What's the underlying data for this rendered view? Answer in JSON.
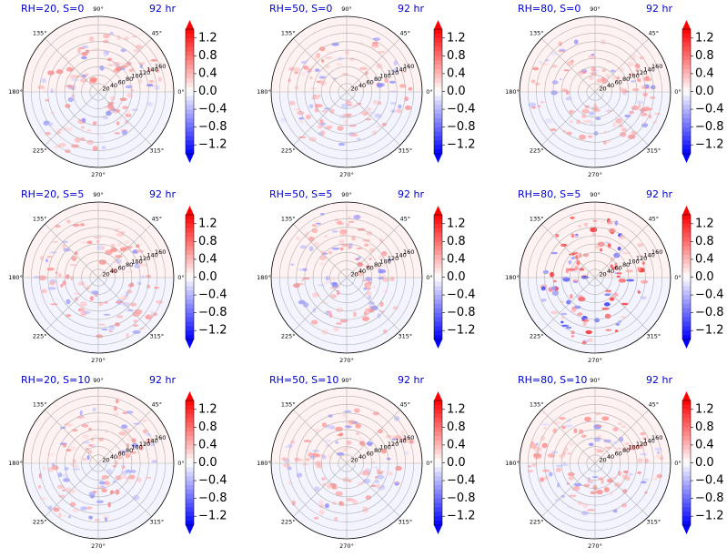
{
  "chart_data": [
    {
      "type": "heatmap",
      "projection": "polar",
      "title_left": "RH=20, S=0",
      "title_right": "92 hr",
      "rh": 20,
      "s": 0
    },
    {
      "type": "heatmap",
      "projection": "polar",
      "title_left": "RH=50, S=0",
      "title_right": "92 hr",
      "rh": 50,
      "s": 0
    },
    {
      "type": "heatmap",
      "projection": "polar",
      "title_left": "RH=80, S=0",
      "title_right": "92 hr",
      "rh": 80,
      "s": 0
    },
    {
      "type": "heatmap",
      "projection": "polar",
      "title_left": "RH=20, S=5",
      "title_right": "92 hr",
      "rh": 20,
      "s": 5
    },
    {
      "type": "heatmap",
      "projection": "polar",
      "title_left": "RH=50, S=5",
      "title_right": "92 hr",
      "rh": 50,
      "s": 5
    },
    {
      "type": "heatmap",
      "projection": "polar",
      "title_left": "RH=80, S=5",
      "title_right": "92 hr",
      "rh": 80,
      "s": 5
    },
    {
      "type": "heatmap",
      "projection": "polar",
      "title_left": "RH=20, S=10",
      "title_right": "92 hr",
      "rh": 20,
      "s": 10
    },
    {
      "type": "heatmap",
      "projection": "polar",
      "title_left": "RH=50, S=10",
      "title_right": "92 hr",
      "rh": 50,
      "s": 10
    },
    {
      "type": "heatmap",
      "projection": "polar",
      "title_left": "RH=80, S=10",
      "title_right": "92 hr",
      "rh": 80,
      "s": 10
    }
  ],
  "axes": {
    "angle_ticks": [
      0,
      45,
      90,
      135,
      180,
      225,
      270,
      315
    ],
    "angle_labels": [
      "0°",
      "45°",
      "90°",
      "135°",
      "180°",
      "225°",
      "270°",
      "315°"
    ],
    "radial_ticks": [
      20,
      40,
      60,
      80,
      100,
      120,
      140,
      160
    ],
    "radial_labels": [
      "20",
      "40",
      "60",
      "80",
      "100",
      "120",
      "140",
      "160"
    ],
    "r_max": 180,
    "radial_label_angle_deg": 22.5
  },
  "colorbar": {
    "cmap": "bwr",
    "vmin": -1.4,
    "vmax": 1.4,
    "levels": 28,
    "extend": "both",
    "ticks": [
      1.2,
      0.8,
      0.4,
      0.0,
      -0.4,
      -0.8,
      -1.2
    ],
    "tick_labels": [
      "1.2",
      "0.8",
      "0.4",
      "0.0",
      "−0.4",
      "−0.8",
      "−1.2"
    ]
  },
  "colors": {
    "title_color": "#0000cc",
    "grid_color": "#b0b0b0",
    "low": "#0000ff",
    "mid": "#ffffff",
    "high": "#ff0000"
  }
}
